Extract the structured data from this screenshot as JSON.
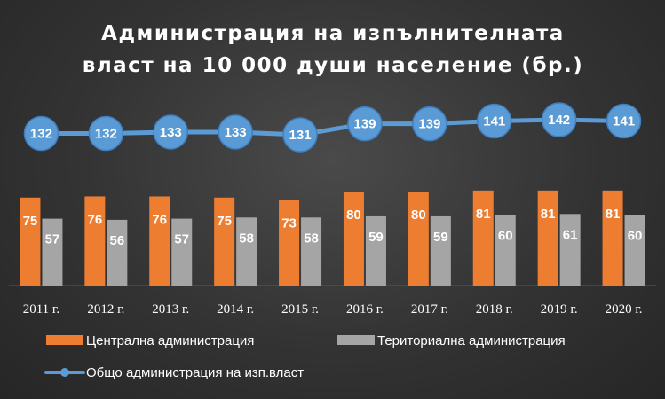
{
  "chart_data": {
    "type": "bar",
    "title_lines": [
      "Администрация на изпълнителната",
      "власт на 10 000 души население (бр.)"
    ],
    "categories": [
      "2011 г.",
      "2012 г.",
      "2013 г.",
      "2014 г.",
      "2015 г.",
      "2016 г.",
      "2017 г.",
      "2018 г.",
      "2019 г.",
      "2020 г."
    ],
    "series": [
      {
        "name": "Централна администрация",
        "kind": "bar",
        "color": "#ED7D31",
        "values": [
          75,
          76,
          76,
          75,
          73,
          80,
          80,
          81,
          81,
          81
        ]
      },
      {
        "name": "Териториална администрация",
        "kind": "bar",
        "color": "#A5A5A5",
        "values": [
          57,
          56,
          57,
          58,
          58,
          59,
          59,
          60,
          61,
          60
        ]
      },
      {
        "name": "Общо администрация на изп.власт",
        "kind": "line",
        "color": "#5B9BD5",
        "values": [
          132,
          132,
          133,
          133,
          131,
          139,
          139,
          141,
          142,
          141
        ]
      }
    ],
    "bar_ylim": [
      0,
      90
    ],
    "line_ylim": [
      110,
      150
    ],
    "grid": false,
    "legend": "bottom"
  }
}
